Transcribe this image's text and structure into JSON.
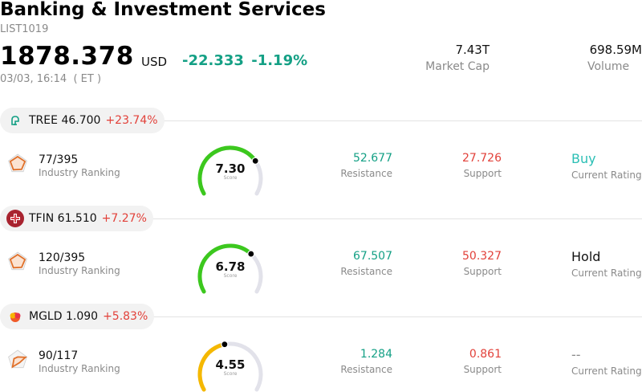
{
  "header": {
    "title": "Banking & Investment Services",
    "code": "LIST1019",
    "price": "1878.378",
    "currency": "USD",
    "change": "-22.333",
    "change_pct": "-1.19%",
    "datetime": "03/03, 16:14  ( ET )",
    "market_cap_value": "7.43T",
    "market_cap_label": "Market Cap",
    "volume_value": "698.59M",
    "volume_label": "Volume"
  },
  "colors": {
    "positive_green": "#14a085",
    "negative_red": "#e2413a",
    "gauge_green": "#3cc81e",
    "gauge_yellow": "#f5b800",
    "gauge_track": "#e2e2ea",
    "buy_teal": "#2bbfb5"
  },
  "stocks": [
    {
      "symbol": "TREE",
      "price": "46.700",
      "change_pct": "+23.74%",
      "logo_icon": "tree-leaf-icon",
      "rank": "77/395",
      "rank_label": "Industry Ranking",
      "score": "7.30",
      "score_fraction": 0.73,
      "score_label": "Score",
      "resistance": "52.677",
      "resistance_label": "Resistance",
      "support": "27.726",
      "support_label": "Support",
      "rating": "Buy",
      "rating_label": "Current Rating"
    },
    {
      "symbol": "TFIN",
      "price": "61.510",
      "change_pct": "+7.27%",
      "logo_icon": "cross-badge-icon",
      "rank": "120/395",
      "rank_label": "Industry Ranking",
      "score": "6.78",
      "score_fraction": 0.678,
      "score_label": "Score",
      "resistance": "67.507",
      "resistance_label": "Resistance",
      "support": "50.327",
      "support_label": "Support",
      "rating": "Hold",
      "rating_label": "Current Rating"
    },
    {
      "symbol": "MGLD",
      "price": "1.090",
      "change_pct": "+5.83%",
      "logo_icon": "flame-icon",
      "rank": "90/117",
      "rank_label": "Industry Ranking",
      "score": "4.55",
      "score_fraction": 0.455,
      "score_label": "Score",
      "resistance": "1.284",
      "resistance_label": "Resistance",
      "support": "0.861",
      "support_label": "Support",
      "rating": "--",
      "rating_label": "Current Rating"
    }
  ]
}
